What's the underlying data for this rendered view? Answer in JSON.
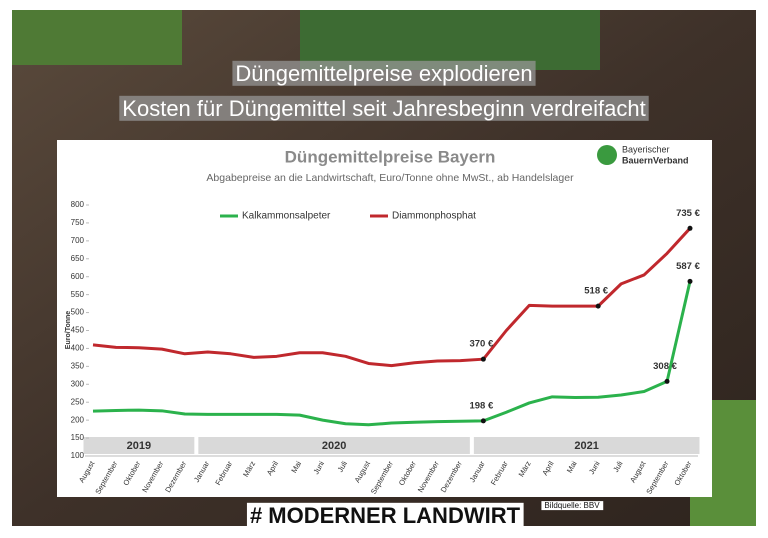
{
  "header": {
    "line1": "Düngemittelpreise explodieren",
    "line2": "Kosten für Düngemittel seit Jahresbeginn verdreifacht"
  },
  "logo": {
    "line1": "Bayerischer",
    "line2": "BauernVerband"
  },
  "footer": {
    "hashtag": "# MODERNER LANDWIRT",
    "credit": "Bildquelle: BBV"
  },
  "chart_data": {
    "type": "line",
    "title": "Düngemittelpreise Bayern",
    "subtitle": "Abgabepreise an die Landwirtschaft, Euro/Tonne ohne MwSt., ab Handelslager",
    "y_label": "Euro/Tonne",
    "categories": [
      "August",
      "September",
      "Oktober",
      "November",
      "Dezember",
      "Januar",
      "Februar",
      "März",
      "April",
      "Mai",
      "Juni",
      "Juli",
      "August",
      "September",
      "Oktober",
      "November",
      "Dezember",
      "Januar",
      "Februar",
      "März",
      "April",
      "Mai",
      "Juni",
      "Juli",
      "August",
      "September",
      "Oktober"
    ],
    "year_labels": [
      "2019",
      "2020",
      "2021"
    ],
    "series": [
      {
        "name": "Kalkammonsalpeter",
        "color": "#2bb24c",
        "values": [
          225,
          227,
          228,
          226,
          217,
          216,
          216,
          216,
          216,
          214,
          200,
          190,
          187,
          192,
          194,
          196,
          197,
          198,
          222,
          248,
          265,
          263,
          264,
          270,
          280,
          308,
          587
        ],
        "value_labels": [
          null,
          null,
          null,
          null,
          null,
          null,
          null,
          null,
          null,
          null,
          null,
          null,
          null,
          null,
          null,
          null,
          null,
          "198 €",
          null,
          null,
          null,
          null,
          null,
          null,
          null,
          "308 €",
          "587 €"
        ]
      },
      {
        "name": "Diammonphosphat",
        "color": "#c0282d",
        "values": [
          410,
          403,
          402,
          398,
          385,
          390,
          385,
          375,
          378,
          388,
          388,
          378,
          358,
          352,
          360,
          365,
          366,
          370,
          450,
          520,
          518,
          518,
          518,
          580,
          605,
          665,
          735
        ],
        "value_labels": [
          null,
          null,
          null,
          null,
          null,
          null,
          null,
          null,
          null,
          null,
          null,
          null,
          null,
          null,
          null,
          null,
          null,
          "370 €",
          null,
          null,
          null,
          null,
          "518 €",
          null,
          null,
          null,
          "735 €"
        ]
      }
    ],
    "ylim": [
      100,
      800
    ],
    "yticks": [
      100,
      150,
      200,
      250,
      300,
      350,
      400,
      450,
      500,
      550,
      600,
      650,
      700,
      750,
      800
    ],
    "grid": false
  }
}
